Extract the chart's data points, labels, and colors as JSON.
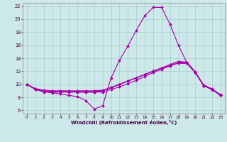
{
  "xlabel": "Windchill (Refroidissement éolien,°C)",
  "background_color": "#cce8e8",
  "grid_color": "#aacccc",
  "line_color": "#aa00aa",
  "xlim": [
    -0.5,
    23.5
  ],
  "ylim": [
    5.5,
    22.5
  ],
  "xticks": [
    0,
    1,
    2,
    3,
    4,
    5,
    6,
    7,
    8,
    9,
    10,
    11,
    12,
    13,
    14,
    15,
    16,
    17,
    18,
    19,
    20,
    21,
    22,
    23
  ],
  "yticks": [
    6,
    8,
    10,
    12,
    14,
    16,
    18,
    20,
    22
  ],
  "series": [
    [
      10.0,
      9.2,
      8.8,
      8.7,
      8.5,
      8.3,
      8.1,
      7.5,
      6.2,
      6.7,
      11.0,
      13.7,
      15.9,
      18.3,
      20.5,
      21.8,
      21.8,
      19.2,
      16.0,
      13.3,
      11.8,
      9.8,
      9.2,
      8.3
    ],
    [
      10.0,
      9.3,
      9.0,
      8.8,
      8.8,
      8.8,
      8.8,
      8.8,
      8.8,
      8.8,
      9.2,
      9.6,
      10.1,
      10.6,
      11.2,
      11.8,
      12.3,
      12.8,
      13.3,
      13.3,
      11.8,
      9.8,
      9.2,
      8.3
    ],
    [
      10.0,
      9.3,
      9.0,
      8.9,
      8.9,
      8.9,
      8.9,
      8.9,
      8.9,
      9.0,
      9.5,
      10.0,
      10.5,
      11.0,
      11.5,
      12.0,
      12.5,
      13.0,
      13.5,
      13.4,
      11.9,
      9.9,
      9.3,
      8.4
    ],
    [
      10.0,
      9.3,
      9.1,
      9.0,
      9.0,
      9.0,
      9.0,
      9.0,
      9.0,
      9.1,
      9.5,
      10.0,
      10.5,
      11.0,
      11.5,
      12.0,
      12.5,
      12.9,
      13.2,
      13.2,
      11.8,
      9.8,
      9.2,
      8.3
    ],
    [
      10.0,
      9.2,
      9.0,
      8.9,
      8.9,
      8.9,
      8.8,
      8.8,
      8.8,
      9.0,
      9.5,
      10.0,
      10.5,
      11.0,
      11.5,
      12.0,
      12.5,
      13.0,
      13.5,
      13.3,
      11.8,
      9.8,
      9.2,
      8.3
    ]
  ]
}
